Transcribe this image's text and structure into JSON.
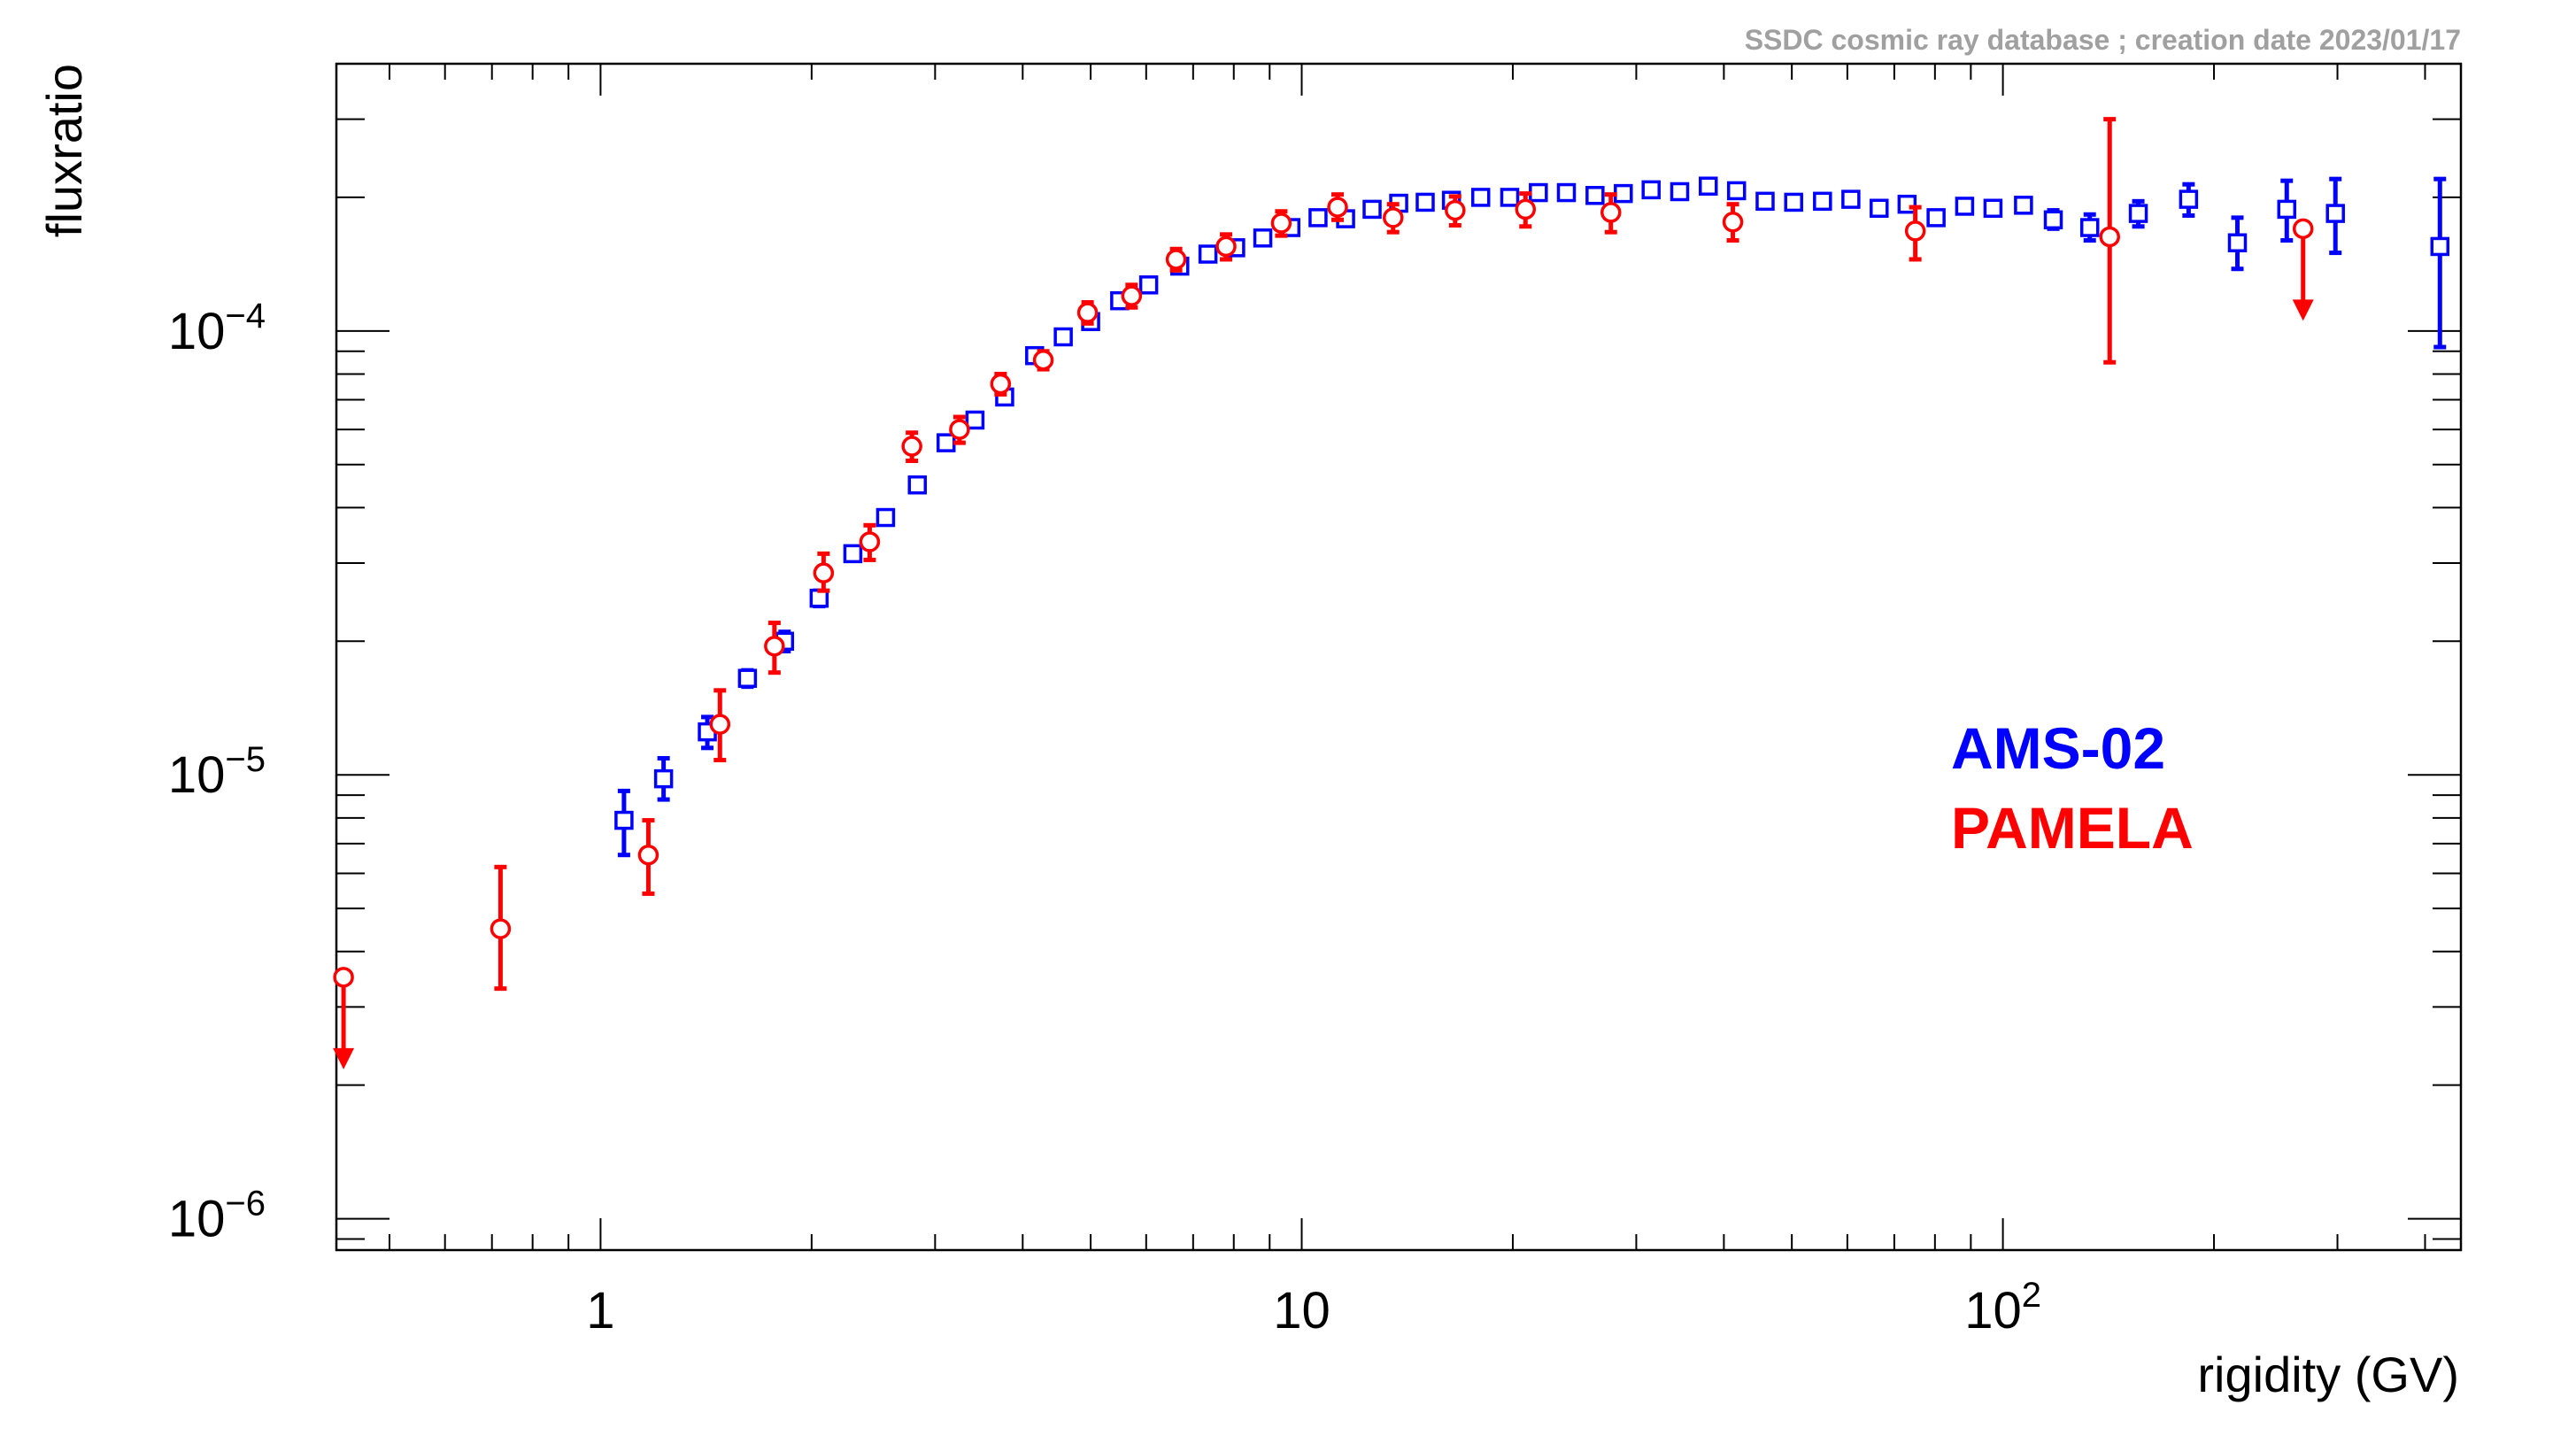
{
  "credit": "SSDC cosmic ray database ; creation date 2023/01/17",
  "chart_data": {
    "type": "scatter",
    "title": "",
    "xlabel": "rigidity (GV)",
    "ylabel": "fluxratio",
    "xscale": "log",
    "yscale": "log",
    "xlim": [
      0.42,
      450
    ],
    "ylim": [
      8.5e-07,
      0.0004
    ],
    "x_tick_labels": [
      {
        "value": 1,
        "base": "1",
        "exp": ""
      },
      {
        "value": 10,
        "base": "10",
        "exp": ""
      },
      {
        "value": 100,
        "base": "10",
        "exp": "2"
      }
    ],
    "y_tick_labels": [
      {
        "value": 1e-06,
        "base": "10",
        "exp": "−6"
      },
      {
        "value": 1e-05,
        "base": "10",
        "exp": "−5"
      },
      {
        "value": 0.0001,
        "base": "10",
        "exp": "−4"
      }
    ],
    "grid": false,
    "legend_position": "right",
    "series": [
      {
        "name": "AMS-02",
        "color": "#0000ff",
        "marker": "open-square",
        "points": [
          {
            "x": 1.08,
            "y": 7.9e-06,
            "lo": 6.6e-06,
            "hi": 9.2e-06
          },
          {
            "x": 1.23,
            "y": 9.8e-06,
            "lo": 8.8e-06,
            "hi": 1.09e-05
          },
          {
            "x": 1.42,
            "y": 1.25e-05,
            "lo": 1.15e-05,
            "hi": 1.35e-05
          },
          {
            "x": 1.62,
            "y": 1.65e-05,
            "lo": 1.58e-05,
            "hi": 1.72e-05
          },
          {
            "x": 1.83,
            "y": 2e-05,
            "lo": 1.9e-05,
            "hi": 2.1e-05
          },
          {
            "x": 2.05,
            "y": 2.5e-05,
            "lo": 2.4e-05,
            "hi": 2.6e-05
          },
          {
            "x": 2.29,
            "y": 3.15e-05,
            "lo": 3.05e-05,
            "hi": 3.25e-05
          },
          {
            "x": 2.55,
            "y": 3.8e-05,
            "lo": 3.7e-05,
            "hi": 3.9e-05
          },
          {
            "x": 2.83,
            "y": 4.5e-05,
            "lo": 4.4e-05,
            "hi": 4.6e-05
          },
          {
            "x": 3.11,
            "y": 5.6e-05,
            "lo": 5.45e-05,
            "hi": 5.75e-05
          },
          {
            "x": 3.42,
            "y": 6.3e-05,
            "lo": 6.15e-05,
            "hi": 6.45e-05
          },
          {
            "x": 3.77,
            "y": 7.1e-05,
            "lo": 6.95e-05,
            "hi": 7.25e-05
          },
          {
            "x": 4.16,
            "y": 8.8e-05,
            "lo": 8.6e-05,
            "hi": 9e-05
          },
          {
            "x": 4.57,
            "y": 9.7e-05,
            "lo": 9.5e-05,
            "hi": 9.9e-05
          },
          {
            "x": 5.0,
            "y": 0.000105
          },
          {
            "x": 5.5,
            "y": 0.000117
          },
          {
            "x": 6.05,
            "y": 0.000127
          },
          {
            "x": 6.7,
            "y": 0.00014
          },
          {
            "x": 7.35,
            "y": 0.000149
          },
          {
            "x": 8.05,
            "y": 0.000154
          },
          {
            "x": 8.8,
            "y": 0.000162
          },
          {
            "x": 9.65,
            "y": 0.000171
          },
          {
            "x": 10.55,
            "y": 0.00018
          },
          {
            "x": 11.55,
            "y": 0.000179
          },
          {
            "x": 12.6,
            "y": 0.000188
          },
          {
            "x": 13.75,
            "y": 0.000194
          },
          {
            "x": 15.0,
            "y": 0.000195
          },
          {
            "x": 16.35,
            "y": 0.000197
          },
          {
            "x": 18.0,
            "y": 0.0002
          },
          {
            "x": 19.8,
            "y": 0.0002
          },
          {
            "x": 21.75,
            "y": 0.000205
          },
          {
            "x": 23.85,
            "y": 0.000205
          },
          {
            "x": 26.2,
            "y": 0.000202
          },
          {
            "x": 28.75,
            "y": 0.000204
          },
          {
            "x": 31.5,
            "y": 0.000208
          },
          {
            "x": 34.6,
            "y": 0.000206
          },
          {
            "x": 38.0,
            "y": 0.000212
          },
          {
            "x": 41.7,
            "y": 0.000207
          },
          {
            "x": 45.8,
            "y": 0.000196
          },
          {
            "x": 50.3,
            "y": 0.000195
          },
          {
            "x": 55.3,
            "y": 0.000196
          },
          {
            "x": 60.7,
            "y": 0.000198
          },
          {
            "x": 66.6,
            "y": 0.000189
          },
          {
            "x": 73.0,
            "y": 0.000193
          },
          {
            "x": 80.3,
            "y": 0.00018
          },
          {
            "x": 88.2,
            "y": 0.000191
          },
          {
            "x": 96.8,
            "y": 0.000189
          },
          {
            "x": 107.0,
            "y": 0.000192
          },
          {
            "x": 118.0,
            "y": 0.000178,
            "lo": 0.00017,
            "hi": 0.000187
          },
          {
            "x": 133.0,
            "y": 0.000171,
            "lo": 0.00016,
            "hi": 0.000183
          },
          {
            "x": 156.0,
            "y": 0.000184,
            "lo": 0.000172,
            "hi": 0.000196
          },
          {
            "x": 184.0,
            "y": 0.000198,
            "lo": 0.000182,
            "hi": 0.000214
          },
          {
            "x": 216.0,
            "y": 0.000158,
            "lo": 0.000138,
            "hi": 0.00018
          },
          {
            "x": 254.0,
            "y": 0.000188,
            "lo": 0.00016,
            "hi": 0.000218
          },
          {
            "x": 298.0,
            "y": 0.000184,
            "lo": 0.00015,
            "hi": 0.00022
          },
          {
            "x": 420.0,
            "y": 0.000155,
            "lo": 9.2e-05,
            "hi": 0.00022
          }
        ]
      },
      {
        "name": "PAMELA",
        "color": "#ff0000",
        "marker": "open-circle",
        "points": [
          {
            "x": 0.43,
            "y": 3.5e-06,
            "upper_limit": true
          },
          {
            "x": 0.72,
            "y": 4.5e-06,
            "lo": 3.3e-06,
            "hi": 6.2e-06
          },
          {
            "x": 1.17,
            "y": 6.6e-06,
            "lo": 5.4e-06,
            "hi": 7.9e-06
          },
          {
            "x": 1.48,
            "y": 1.3e-05,
            "lo": 1.08e-05,
            "hi": 1.55e-05
          },
          {
            "x": 1.77,
            "y": 1.95e-05,
            "lo": 1.7e-05,
            "hi": 2.2e-05
          },
          {
            "x": 2.08,
            "y": 2.85e-05,
            "lo": 2.6e-05,
            "hi": 3.15e-05
          },
          {
            "x": 2.42,
            "y": 3.35e-05,
            "lo": 3.05e-05,
            "hi": 3.65e-05
          },
          {
            "x": 2.78,
            "y": 5.5e-05,
            "lo": 5.1e-05,
            "hi": 5.9e-05
          },
          {
            "x": 3.25,
            "y": 6e-05,
            "lo": 5.6e-05,
            "hi": 6.4e-05
          },
          {
            "x": 3.72,
            "y": 7.6e-05,
            "lo": 7.2e-05,
            "hi": 8e-05
          },
          {
            "x": 4.28,
            "y": 8.6e-05,
            "lo": 8.2e-05,
            "hi": 9e-05
          },
          {
            "x": 4.95,
            "y": 0.00011,
            "lo": 0.000104,
            "hi": 0.000116
          },
          {
            "x": 5.72,
            "y": 0.00012,
            "lo": 0.000113,
            "hi": 0.000127
          },
          {
            "x": 6.62,
            "y": 0.000145,
            "lo": 0.000137,
            "hi": 0.000153
          },
          {
            "x": 7.8,
            "y": 0.000155,
            "lo": 0.000145,
            "hi": 0.000165
          },
          {
            "x": 9.35,
            "y": 0.000175,
            "lo": 0.000164,
            "hi": 0.000186
          },
          {
            "x": 11.25,
            "y": 0.00019,
            "lo": 0.000178,
            "hi": 0.000203
          },
          {
            "x": 13.5,
            "y": 0.00018,
            "lo": 0.000167,
            "hi": 0.000193
          },
          {
            "x": 16.55,
            "y": 0.000187,
            "lo": 0.000173,
            "hi": 0.000201
          },
          {
            "x": 20.85,
            "y": 0.000188,
            "lo": 0.000172,
            "hi": 0.000204
          },
          {
            "x": 27.6,
            "y": 0.000185,
            "lo": 0.000167,
            "hi": 0.000203
          },
          {
            "x": 41.2,
            "y": 0.000176,
            "lo": 0.00016,
            "hi": 0.000193
          },
          {
            "x": 75.0,
            "y": 0.000168,
            "lo": 0.000145,
            "hi": 0.00019
          },
          {
            "x": 142.0,
            "y": 0.000163,
            "lo": 8.5e-05,
            "hi": 0.0003
          },
          {
            "x": 268.0,
            "y": 0.00017,
            "upper_limit": true
          }
        ]
      }
    ]
  }
}
